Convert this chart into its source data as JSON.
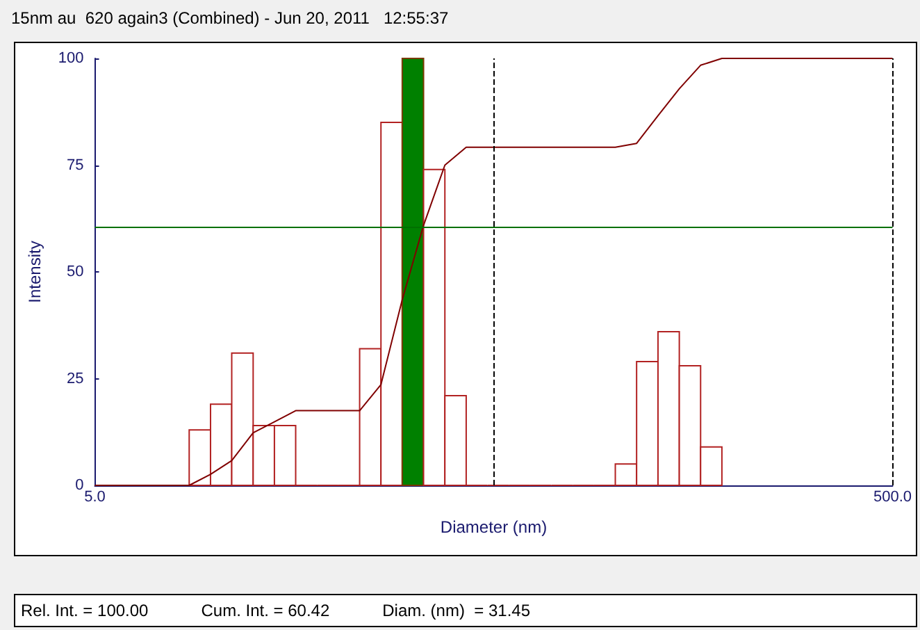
{
  "chart_data": {
    "type": "histogram",
    "title": "15nm au  620 again3 (Combined) - Jun 20, 2011   12:55:37",
    "xlabel": "Diameter (nm)",
    "ylabel": "Intensity",
    "bins": [
      8.62,
      9.75,
      11.02,
      12.47,
      14.1,
      15.94,
      18.03,
      20.39,
      23.06,
      26.08,
      29.49,
      33.35,
      37.72,
      42.66,
      48.24,
      54.56,
      61.7,
      69.77,
      78.91,
      89.24,
      100.9,
      114.1,
      129.1,
      146,
      165.1,
      186.7
    ],
    "series": [
      {
        "color": "#b22222",
        "colors": [
          "#b22222",
          "#b22222",
          "#b22222",
          "#b22222",
          "#b22222",
          "#b22222",
          "#b22222",
          "#b22222",
          "#b22222",
          "#b22222",
          "#008000",
          "#b22222",
          "#b22222",
          "#b22222",
          "#b22222",
          "#b22222",
          "#b22222",
          "#b22222",
          "#b22222",
          "#b22222",
          "#b22222",
          "#b22222",
          "#b22222",
          "#b22222",
          "#b22222"
        ],
        "values": [
          13,
          19,
          31,
          14,
          14,
          0,
          0,
          0,
          32,
          85,
          100,
          74,
          21,
          0,
          0,
          0,
          0,
          0,
          0,
          0,
          5,
          29,
          36,
          28,
          9
        ]
      },
      {
        "type": "line",
        "color": "#800000",
        "x": [
          5,
          8.62,
          9.75,
          11.02,
          12.47,
          14.1,
          15.94,
          23.06,
          26.08,
          29.49,
          33.35,
          37.72,
          42.66,
          100.9,
          114.1,
          129.1,
          146,
          165.1,
          186.7,
          500
        ],
        "values": [
          0,
          0,
          2.6,
          5.8,
          12.3,
          14.9,
          17.5,
          17.5,
          23.6,
          43.5,
          60.9,
          75,
          79.2,
          79.2,
          80.1,
          86.6,
          92.9,
          98.4,
          100,
          100
        ]
      }
    ],
    "log": "x",
    "xlim": [
      5,
      500
    ],
    "xticks": [
      {
        "value": 5,
        "label": "5.0"
      },
      {
        "value": 500,
        "label": "500.0"
      }
    ],
    "ylim": [
      0,
      100
    ],
    "yticks": [
      0,
      25,
      50,
      75,
      100
    ],
    "ref_lines": [
      {
        "axis": "y",
        "value": 60.42,
        "color": "#007000",
        "line_style": "solid"
      },
      {
        "axis": "x",
        "value": 50,
        "color": "#000000",
        "line_style": "dashed"
      },
      {
        "axis": "x",
        "value": 500,
        "color": "#000000",
        "line_style": "dashed"
      }
    ],
    "annotations": [
      "Rel. Int. = 100.00",
      "Cum. Int. = 60.42",
      "Diam. (nm)  = 31.45"
    ],
    "grid": false,
    "marker": "none"
  }
}
